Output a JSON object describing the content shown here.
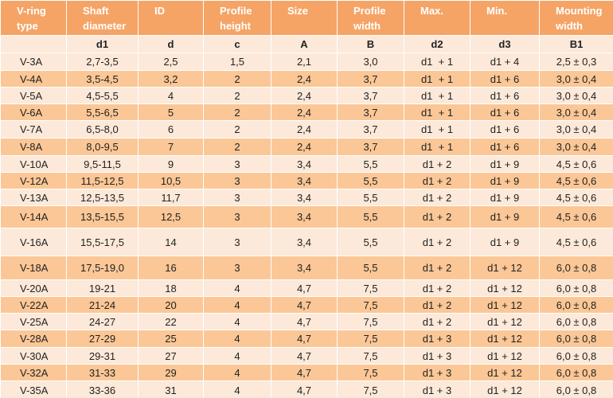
{
  "table": {
    "header": [
      "V-ring\ntype",
      "Shaft\ndiameter",
      "ID",
      "Profile\nheight",
      "Size",
      "Profile\nwidth",
      "Max.",
      "Min.",
      "Mounting\nwidth"
    ],
    "symbols": [
      "d1",
      "d",
      "c",
      "A",
      "B",
      "d2",
      "d3",
      "B1"
    ],
    "rows": [
      [
        "V-3A",
        "2,7-3,5",
        "2,5",
        "1,5",
        "2,1",
        "3,0",
        "d1  + 1",
        "d1 + 4",
        "2,5 ± 0,3"
      ],
      [
        "V-4A",
        "3,5-4,5",
        "3,2",
        "2",
        "2,4",
        "3,7",
        "d1  + 1",
        "d1 + 6",
        "3,0 ± 0,4"
      ],
      [
        "V-5A",
        "4,5-5,5",
        "4",
        "2",
        "2,4",
        "3,7",
        "d1  + 1",
        "d1 + 6",
        "3,0 ± 0,4"
      ],
      [
        "V-6A",
        "5,5-6,5",
        "5",
        "2",
        "2,4",
        "3,7",
        "d1  + 1",
        "d1 + 6",
        "3,0 ± 0,4"
      ],
      [
        "V-7A",
        "6,5-8,0",
        "6",
        "2",
        "2,4",
        "3,7",
        "d1  + 1",
        "d1 + 6",
        "3,0 ± 0,4"
      ],
      [
        "V-8A",
        "8,0-9,5",
        "7",
        "2",
        "2,4",
        "3,7",
        "d1  + 1",
        "d1 + 6",
        "3,0 ± 0,4"
      ],
      [
        "V-10A",
        "9,5-11,5",
        "9",
        "3",
        "3,4",
        "5,5",
        "d1 + 2",
        "d1 + 9",
        "4,5 ± 0,6"
      ],
      [
        "V-12A",
        "11,5-12,5",
        "10,5",
        "3",
        "3,4",
        "5,5",
        "d1 + 2",
        "d1 + 9",
        "4,5 ± 0,6"
      ],
      [
        "V-13A",
        "12,5-13,5",
        "11,7",
        "3",
        "3,4",
        "5,5",
        "d1 + 2",
        "d1 + 9",
        "4,5 ± 0,6"
      ],
      [
        "V-14A",
        "13,5-15,5",
        "12,5",
        "3",
        "3,4",
        "5,5",
        "d1 + 2",
        "d1 + 9",
        "4,5 ± 0,6"
      ],
      [
        "V-16A",
        "15,5-17,5",
        "14",
        "3",
        "3,4",
        "5,5",
        "d1 + 2",
        "d1 + 9",
        "4,5 ± 0,6"
      ],
      [
        "V-18A",
        "17,5-19,0",
        "16",
        "3",
        "3,4",
        "5,5",
        "d1 + 2",
        "d1 + 12",
        "6,0 ± 0,8"
      ],
      [
        "V-20A",
        "19-21",
        "18",
        "4",
        "4,7",
        "7,5",
        "d1 + 2",
        "d1 + 12",
        "6,0 ± 0,8"
      ],
      [
        "V-22A",
        "21-24",
        "20",
        "4",
        "4,7",
        "7,5",
        "d1 + 2",
        "d1 + 12",
        "6,0 ± 0,8"
      ],
      [
        "V-25A",
        "24-27",
        "22",
        "4",
        "4,7",
        "7,5",
        "d1 + 2",
        "d1 + 12",
        "6,0 ± 0,8"
      ],
      [
        "V-28A",
        "27-29",
        "25",
        "4",
        "4,7",
        "7,5",
        "d1 + 3",
        "d1 + 12",
        "6,0 ± 0,8"
      ],
      [
        "V-30A",
        "29-31",
        "27",
        "4",
        "4,7",
        "7,5",
        "d1 + 3",
        "d1 + 12",
        "6,0 ± 0,8"
      ],
      [
        "V-32A",
        "31-33",
        "29",
        "4",
        "4,7",
        "7,5",
        "d1 + 3",
        "d1 + 12",
        "6,0 ± 0,8"
      ],
      [
        "V-35A",
        "33-36",
        "31",
        "4",
        "4,7",
        "7,5",
        "d1 + 3",
        "d1 + 12",
        "6,0 ± 0,8"
      ]
    ]
  }
}
